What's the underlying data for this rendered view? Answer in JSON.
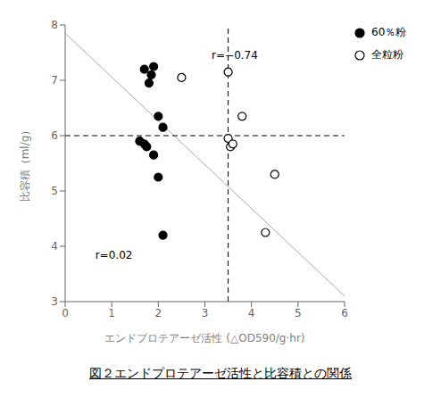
{
  "chart_data": {
    "type": "scatter",
    "title": "図２エンドプロテアーゼ活性と比容積との関係",
    "x_label": "エンドプロテアーゼ活性 (△OD590/g·hr)",
    "y_label": "比容積（ml/g）",
    "xlim": [
      0,
      6
    ],
    "ylim": [
      3,
      8
    ],
    "xticks": [
      0,
      1,
      2,
      3,
      4,
      5,
      6
    ],
    "yticks": [
      3,
      4,
      5,
      6,
      7,
      8
    ],
    "grid": false,
    "legend": "right",
    "series": [
      {
        "name": "60％粉",
        "color": "#000000",
        "marker": "filled_circle",
        "x": [
          1.7,
          1.85,
          1.9,
          1.8,
          1.6,
          1.7,
          1.75,
          2.0,
          2.1,
          1.9,
          2.0,
          2.1
        ],
        "values": [
          7.2,
          7.1,
          7.25,
          6.95,
          5.9,
          5.85,
          5.8,
          6.35,
          6.15,
          5.65,
          5.25,
          4.2
        ]
      },
      {
        "name": "全粒粉",
        "color": "#000000",
        "marker": "open_circle",
        "x": [
          2.5,
          3.5,
          3.5,
          3.55,
          3.6,
          3.8,
          4.5,
          4.3
        ],
        "values": [
          7.05,
          7.15,
          5.95,
          5.8,
          5.85,
          6.35,
          5.3,
          4.25
        ]
      }
    ],
    "regression_line": {
      "x": [
        0,
        6
      ],
      "values": [
        7.85,
        3.1
      ],
      "color": "#aaaaaa"
    },
    "reference_lines": [
      {
        "axis": "y",
        "value": 6.0,
        "line_style": "dashed",
        "color": "#000000"
      },
      {
        "axis": "x",
        "value": 3.5,
        "line_style": "dashed",
        "color": "#000000"
      }
    ],
    "annotations": [
      {
        "text": "r=0.02",
        "x": 0.55,
        "y": 3.85
      },
      {
        "text": "r=−0.74",
        "x": 3.05,
        "y": 7.45
      }
    ]
  }
}
